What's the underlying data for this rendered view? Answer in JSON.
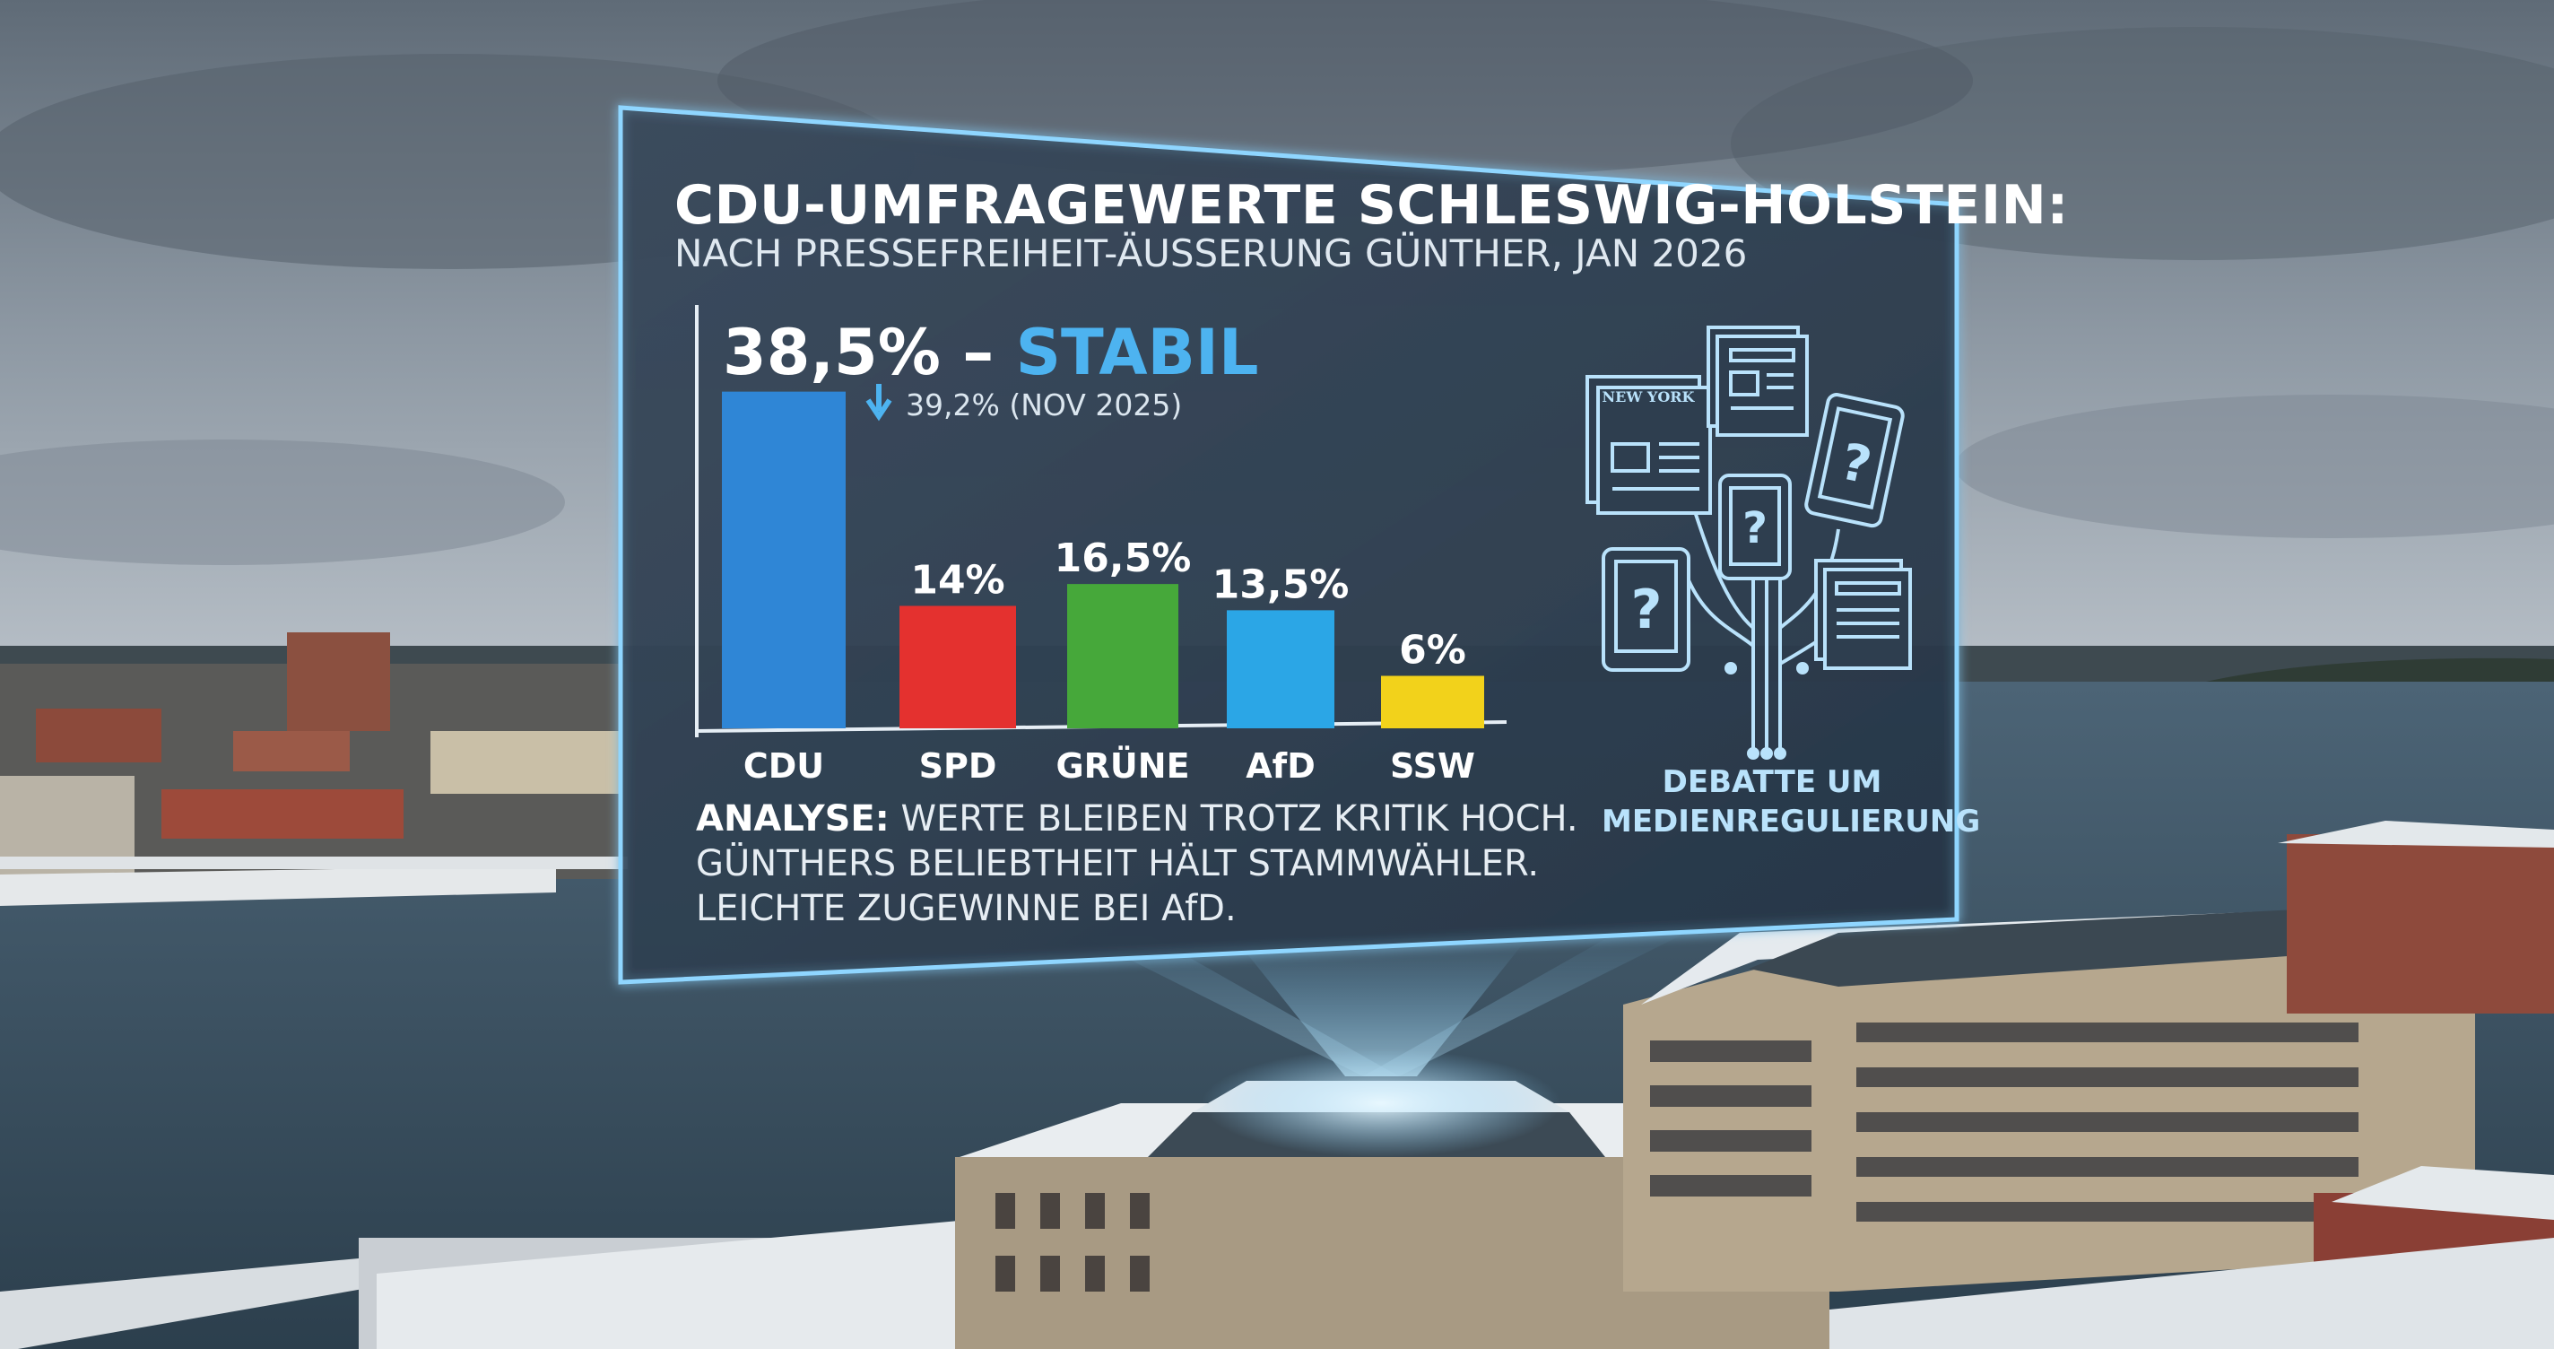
{
  "panel": {
    "title": "CDU-UMFRAGEWERTE SCHLESWIG-HOLSTEIN:",
    "subtitle": "NACH PRESSEFREIHEIT-ÄUSSERUNG GÜNTHER, JAN 2026",
    "headline_value": "38,5%",
    "headline_dash": " – ",
    "headline_status": "STABIL",
    "previous_value": "39,2% (NOV 2025)",
    "analysis_label": "ANALYSE:",
    "analysis_line1": " WERTE BLEIBEN TROTZ KRITIK HOCH.",
    "analysis_line2": "GÜNTHERS BELIEBTHEIT HÄLT STAMMWÄHLER.",
    "analysis_line3": "LEICHTE ZUGEWINNE BEI AfD.",
    "side_caption": "DEBATTE UM MEDIENREGULIERUNG",
    "newspaper_masthead": "NEW YORK"
  },
  "icons": [
    "arrow-down-icon",
    "newspaper-icon",
    "tablet-question-icon",
    "network-tree-icon"
  ],
  "colors": {
    "cdu": "#2f86d6",
    "spd": "#e4312f",
    "gruene": "#46a83a",
    "afd": "#2ba6e6",
    "ssw": "#f2d21b",
    "accent": "#4db3f0",
    "panel_border": "#8fd6ff"
  },
  "chart_data": {
    "type": "bar",
    "categories": [
      "CDU",
      "SPD",
      "GRÜNE",
      "AfD",
      "SSW"
    ],
    "values": [
      38.5,
      14,
      16.5,
      13.5,
      6
    ],
    "labels": [
      "",
      "14%",
      "16,5%",
      "13,5%",
      "6%"
    ],
    "bar_colors": [
      "#2f86d6",
      "#e4312f",
      "#46a83a",
      "#2ba6e6",
      "#f2d21b"
    ],
    "ylim": [
      0,
      40
    ],
    "grid": false,
    "legend": "none"
  }
}
